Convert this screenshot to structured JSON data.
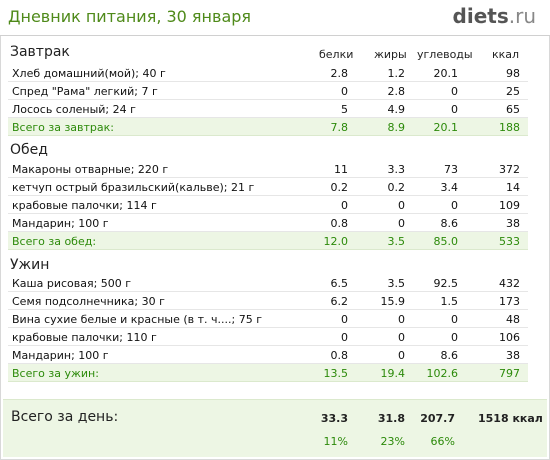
{
  "header": {
    "title": "Дневник питания, 30 января",
    "logo_brand": "diets",
    "logo_tld": ".ru"
  },
  "columns": {
    "protein": "белки",
    "fat": "жиры",
    "carbs": "углеводы",
    "kcal": "ккал"
  },
  "meals": [
    {
      "title": "Завтрак",
      "items": [
        {
          "name": "Хлеб домашний(мой); 40 г",
          "protein": "2.8",
          "fat": "1.2",
          "carbs": "20.1",
          "kcal": "98"
        },
        {
          "name": "Спред \"Рама\" легкий; 7 г",
          "protein": "0",
          "fat": "2.8",
          "carbs": "0",
          "kcal": "25"
        },
        {
          "name": "Лосось соленый; 24 г",
          "protein": "5",
          "fat": "4.9",
          "carbs": "0",
          "kcal": "65"
        }
      ],
      "total": {
        "label": "Всего за завтрак:",
        "protein": "7.8",
        "fat": "8.9",
        "carbs": "20.1",
        "kcal": "188"
      }
    },
    {
      "title": "Обед",
      "items": [
        {
          "name": "Макароны отварные; 220 г",
          "protein": "11",
          "fat": "3.3",
          "carbs": "73",
          "kcal": "372"
        },
        {
          "name": "кетчуп острый бразильский(кальве); 21 г",
          "protein": "0.2",
          "fat": "0.2",
          "carbs": "3.4",
          "kcal": "14"
        },
        {
          "name": "крабовые палочки; 114 г",
          "protein": "0",
          "fat": "0",
          "carbs": "0",
          "kcal": "109"
        },
        {
          "name": "Мандарин; 100 г",
          "protein": "0.8",
          "fat": "0",
          "carbs": "8.6",
          "kcal": "38"
        }
      ],
      "total": {
        "label": "Всего за обед:",
        "protein": "12.0",
        "fat": "3.5",
        "carbs": "85.0",
        "kcal": "533"
      }
    },
    {
      "title": "Ужин",
      "items": [
        {
          "name": "Каша рисовая; 500 г",
          "protein": "6.5",
          "fat": "3.5",
          "carbs": "92.5",
          "kcal": "432"
        },
        {
          "name": "Семя подсолнечника; 30 г",
          "protein": "6.2",
          "fat": "15.9",
          "carbs": "1.5",
          "kcal": "173"
        },
        {
          "name": "Вина сухие белые и красные (в т. ч....; 75 г",
          "protein": "0",
          "fat": "0",
          "carbs": "0",
          "kcal": "48"
        },
        {
          "name": "крабовые палочки; 110 г",
          "protein": "0",
          "fat": "0",
          "carbs": "0",
          "kcal": "106"
        },
        {
          "name": "Мандарин; 100 г",
          "protein": "0.8",
          "fat": "0",
          "carbs": "8.6",
          "kcal": "38"
        }
      ],
      "total": {
        "label": "Всего за ужин:",
        "protein": "13.5",
        "fat": "19.4",
        "carbs": "102.6",
        "kcal": "797"
      }
    }
  ],
  "day_total": {
    "label": "Всего за день:",
    "protein": "33.3",
    "fat": "31.8",
    "carbs": "207.7",
    "kcal": "1518 ккал",
    "protein_pct": "11%",
    "fat_pct": "23%",
    "carbs_pct": "66%"
  }
}
